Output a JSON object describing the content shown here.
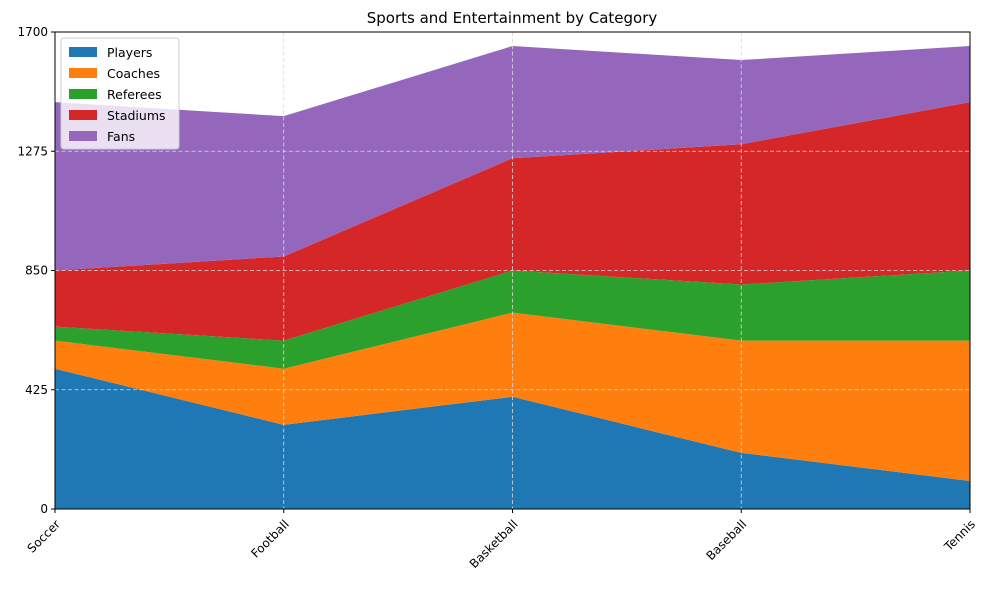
{
  "chart_data": {
    "type": "area",
    "stacked": true,
    "title": "Sports and Entertainment by Category",
    "categories": [
      "Soccer",
      "Football",
      "Basketball",
      "Baseball",
      "Tennis"
    ],
    "series": [
      {
        "name": "Players",
        "color": "#1f77b4",
        "values": [
          500,
          300,
          400,
          200,
          100
        ]
      },
      {
        "name": "Coaches",
        "color": "#ff7f0e",
        "values": [
          100,
          200,
          300,
          400,
          500
        ]
      },
      {
        "name": "Referees",
        "color": "#2ca02c",
        "values": [
          50,
          100,
          150,
          200,
          250
        ]
      },
      {
        "name": "Stadiums",
        "color": "#d62728",
        "values": [
          200,
          300,
          400,
          500,
          600
        ]
      },
      {
        "name": "Fans",
        "color": "#9467bd",
        "values": [
          600,
          500,
          400,
          300,
          200
        ]
      }
    ],
    "ylim": [
      0,
      1700
    ],
    "yticks": [
      "0",
      "425",
      "850",
      "1275",
      "1700"
    ],
    "xlabel": "",
    "ylabel": "",
    "grid": true,
    "legend_position": "upper-left"
  }
}
